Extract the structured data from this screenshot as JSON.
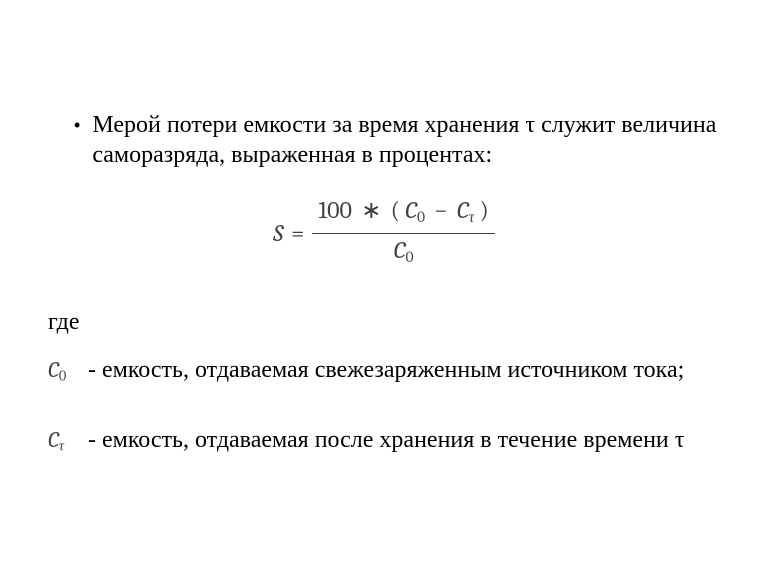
{
  "colors": {
    "background": "#ffffff",
    "text": "#000000",
    "math": "#404040"
  },
  "typography": {
    "body_family": "Times New Roman",
    "body_size_pt": 18,
    "math_family": "Cambria Math"
  },
  "bullet": {
    "glyph": "•",
    "text": "Мерой потери емкости за время хранения τ служит величина саморазряда, выраженная в процентах:"
  },
  "formula": {
    "lhs": "S",
    "eq": "=",
    "numerator": {
      "const": "100",
      "times": "∗",
      "open": "(",
      "c0_base": "C",
      "c0_sub": "0",
      "minus": "−",
      "ct_base": "C",
      "ct_sub": "τ",
      "close": ")"
    },
    "denominator": {
      "c0_base": "C",
      "c0_sub": "0"
    }
  },
  "where_label": "где",
  "defs": [
    {
      "sym_base": "C",
      "sym_sub": "0",
      "text": "- емкость, отдаваемая свежезаряженным источником тока;"
    },
    {
      "sym_base": "C",
      "sym_sub": "τ",
      "text": "- емкость, отдаваемая после хранения в течение времени τ"
    }
  ]
}
